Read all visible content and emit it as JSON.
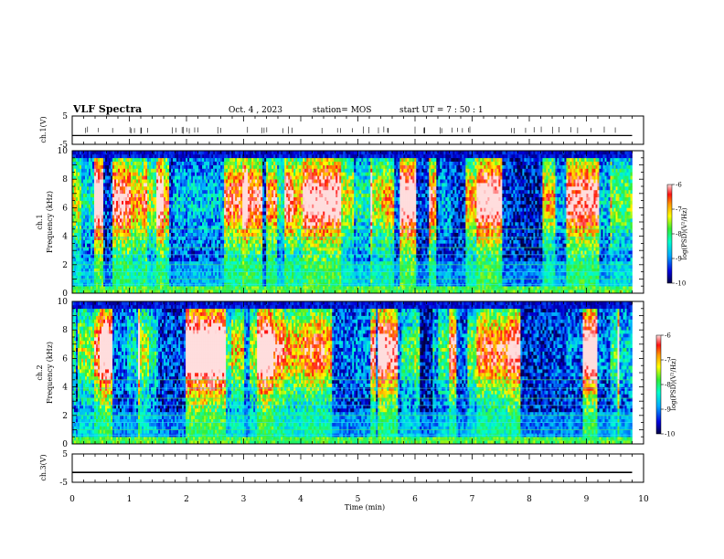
{
  "header": {
    "title": "VLF Spectra",
    "date": "Oct. 4 , 2023",
    "station": "station= MOS",
    "start": "start  UT =   7 : 50 : 1"
  },
  "chart_data": [
    {
      "type": "line",
      "name": "ch1-voltage",
      "ylabel": "ch.1(V)",
      "ylim": [
        -5,
        5
      ],
      "yticks": [
        "5",
        "-5"
      ],
      "xlim": [
        0,
        10
      ],
      "x": [
        0,
        9.8
      ],
      "y": [
        -1.9,
        -1.9
      ]
    },
    {
      "type": "heatmap",
      "name": "ch1-spectrogram",
      "ylabel_lines": [
        "ch.1",
        "Frequency (kHz)"
      ],
      "ylim": [
        0,
        10
      ],
      "yticks": [
        "0",
        "2",
        "4",
        "6",
        "8",
        "10"
      ],
      "xlim": [
        0,
        10
      ],
      "data_xmax": 9.8,
      "colorbar": {
        "label": "log(PSD)(V²/Hz)",
        "range": [
          -10,
          -6
        ],
        "ticks": [
          "-6",
          "-7",
          "-8",
          "-9",
          "-10"
        ]
      }
    },
    {
      "type": "heatmap",
      "name": "ch2-spectrogram",
      "ylabel_lines": [
        "ch.2",
        "Frequency (kHz)"
      ],
      "ylim": [
        0,
        10
      ],
      "yticks": [
        "0",
        "2",
        "4",
        "6",
        "8",
        "10"
      ],
      "xlim": [
        0,
        10
      ],
      "data_xmax": 9.8,
      "colorbar": {
        "label": "log(PSD)(V²/Hz)",
        "range": [
          -10,
          -6
        ],
        "ticks": [
          "-6",
          "-7",
          "-8",
          "-9",
          "-10"
        ]
      }
    },
    {
      "type": "line",
      "name": "ch3-voltage",
      "ylabel": "ch.3(V)",
      "ylim": [
        -5,
        5
      ],
      "yticks": [
        "5",
        "-5"
      ],
      "xlim": [
        0,
        10
      ],
      "x": [
        0,
        9.8
      ],
      "y": [
        -1.5,
        -1.5
      ]
    }
  ],
  "xaxis": {
    "label": "Time  (min)",
    "ticks": [
      "0",
      "1",
      "2",
      "3",
      "4",
      "5",
      "6",
      "7",
      "8",
      "9",
      "10"
    ]
  }
}
